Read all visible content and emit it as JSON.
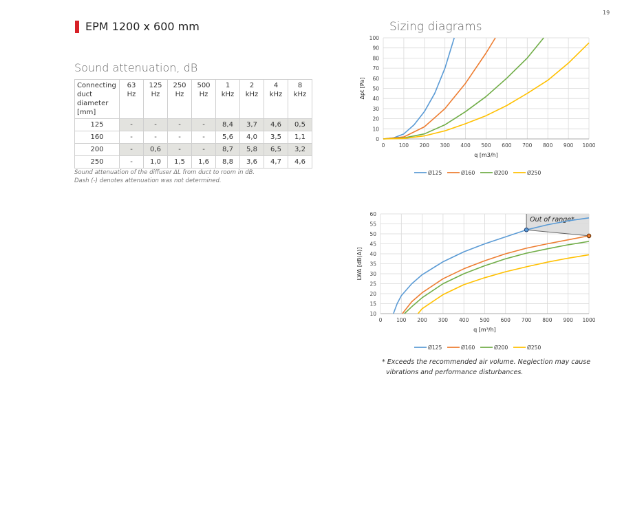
{
  "page": {
    "number": "19"
  },
  "product": {
    "title": "EPM 1200 x 600 mm",
    "accent_color": "#d72027"
  },
  "sound": {
    "title": "Sound attenuation, dB",
    "header_first": [
      "Connecting",
      "duct",
      "diameter",
      "[mm]"
    ],
    "headers": [
      [
        "63",
        "Hz"
      ],
      [
        "125",
        "Hz"
      ],
      [
        "250",
        "Hz"
      ],
      [
        "500",
        "Hz"
      ],
      [
        "1",
        "kHz"
      ],
      [
        "2",
        "kHz"
      ],
      [
        "4",
        "kHz"
      ],
      [
        "8",
        "kHz"
      ]
    ],
    "rows": [
      [
        "125",
        "-",
        "-",
        "-",
        "-",
        "8,4",
        "3,7",
        "4,6",
        "0,5"
      ],
      [
        "160",
        "-",
        "-",
        "-",
        "-",
        "5,6",
        "4,0",
        "3,5",
        "1,1"
      ],
      [
        "200",
        "-",
        "0,6",
        "-",
        "-",
        "8,7",
        "5,8",
        "6,5",
        "3,2"
      ],
      [
        "250",
        "-",
        "1,0",
        "1,5",
        "1,6",
        "8,8",
        "3,6",
        "4,7",
        "4,6"
      ]
    ],
    "footnote_1": "Sound attenuation of the diffuser ΔL from duct to room in dB.",
    "footnote_2": "Dash (-) denotes attenuation was not determined."
  },
  "sizing": {
    "title": "Sizing diagrams"
  },
  "range_note": {
    "line1": "* Exceeds the recommended air volume. Neglection may cause",
    "line2": "vibrations and performance disturbances."
  },
  "chart_data": [
    {
      "type": "line",
      "title": "",
      "xlabel": "q [m3/h]",
      "ylabel": "Δpt [Pa]",
      "xlim": [
        0,
        1000
      ],
      "ylim": [
        0,
        100
      ],
      "xticks": [
        0,
        100,
        200,
        300,
        400,
        500,
        600,
        700,
        800,
        900,
        1000
      ],
      "yticks": [
        0,
        10,
        20,
        30,
        40,
        50,
        60,
        70,
        80,
        90,
        100
      ],
      "grid": true,
      "legend": "bottom",
      "series": [
        {
          "name": "Ø125",
          "color": "#5b9bd5",
          "x": [
            0,
            50,
            100,
            150,
            200,
            250,
            300,
            345
          ],
          "y": [
            0,
            1.0,
            5.0,
            14.0,
            27.0,
            45.0,
            70.0,
            100.0
          ]
        },
        {
          "name": "Ø160",
          "color": "#ed7d31",
          "x": [
            0,
            100,
            200,
            300,
            400,
            500,
            545
          ],
          "y": [
            0,
            2.0,
            12.0,
            30.0,
            55.0,
            85.0,
            100.0
          ]
        },
        {
          "name": "Ø200",
          "color": "#70ad47",
          "x": [
            0,
            100,
            200,
            300,
            400,
            500,
            600,
            700,
            780
          ],
          "y": [
            0,
            1.0,
            5.0,
            14.0,
            27.0,
            42.0,
            60.0,
            80.0,
            100.0
          ]
        },
        {
          "name": "Ø250",
          "color": "#ffc000",
          "x": [
            0,
            100,
            200,
            300,
            400,
            500,
            600,
            700,
            800,
            900,
            1000
          ],
          "y": [
            0,
            0.5,
            3.0,
            8.0,
            15.0,
            23.0,
            33.0,
            45.0,
            58.0,
            75.0,
            95.0
          ]
        }
      ]
    },
    {
      "type": "line",
      "title": "",
      "xlabel": "q [m³/h]",
      "ylabel": "LWA [dB(A)]",
      "xlim": [
        0,
        1000
      ],
      "ylim": [
        10,
        60
      ],
      "xticks": [
        0,
        100,
        200,
        300,
        400,
        500,
        600,
        700,
        800,
        900,
        1000
      ],
      "yticks": [
        10,
        15,
        20,
        25,
        30,
        35,
        40,
        45,
        50,
        55,
        60
      ],
      "grid": true,
      "legend": "bottom",
      "annotation": {
        "text": "Out of range*",
        "x_start": 700,
        "point_in": [
          700,
          52.0
        ],
        "point_out": [
          1000,
          49.0
        ]
      },
      "series": [
        {
          "name": "Ø125",
          "color": "#5b9bd5",
          "x": [
            62,
            80,
            100,
            150,
            200,
            300,
            400,
            500,
            600,
            700,
            800,
            900,
            1000
          ],
          "y": [
            10,
            15.0,
            19.0,
            25.0,
            29.5,
            36.0,
            41.0,
            45.0,
            48.5,
            52.0,
            54.5,
            56.5,
            58.0
          ]
        },
        {
          "name": "Ø160",
          "color": "#ed7d31",
          "x": [
            105,
            150,
            200,
            300,
            400,
            500,
            600,
            700,
            800,
            900,
            1000
          ],
          "y": [
            10,
            16.0,
            20.5,
            27.5,
            32.5,
            36.5,
            40.0,
            42.8,
            45.0,
            47.0,
            49.0
          ]
        },
        {
          "name": "Ø200",
          "color": "#70ad47",
          "x": [
            115,
            150,
            200,
            300,
            400,
            500,
            600,
            700,
            800,
            900,
            1000
          ],
          "y": [
            10,
            13.5,
            18.0,
            25.0,
            30.0,
            34.0,
            37.5,
            40.3,
            42.5,
            44.5,
            46.2
          ]
        },
        {
          "name": "Ø250",
          "color": "#ffc000",
          "x": [
            180,
            200,
            300,
            400,
            500,
            600,
            700,
            800,
            900,
            1000
          ],
          "y": [
            10,
            12.5,
            19.5,
            24.5,
            28.0,
            31.0,
            33.5,
            35.8,
            37.8,
            39.5
          ]
        }
      ]
    }
  ]
}
